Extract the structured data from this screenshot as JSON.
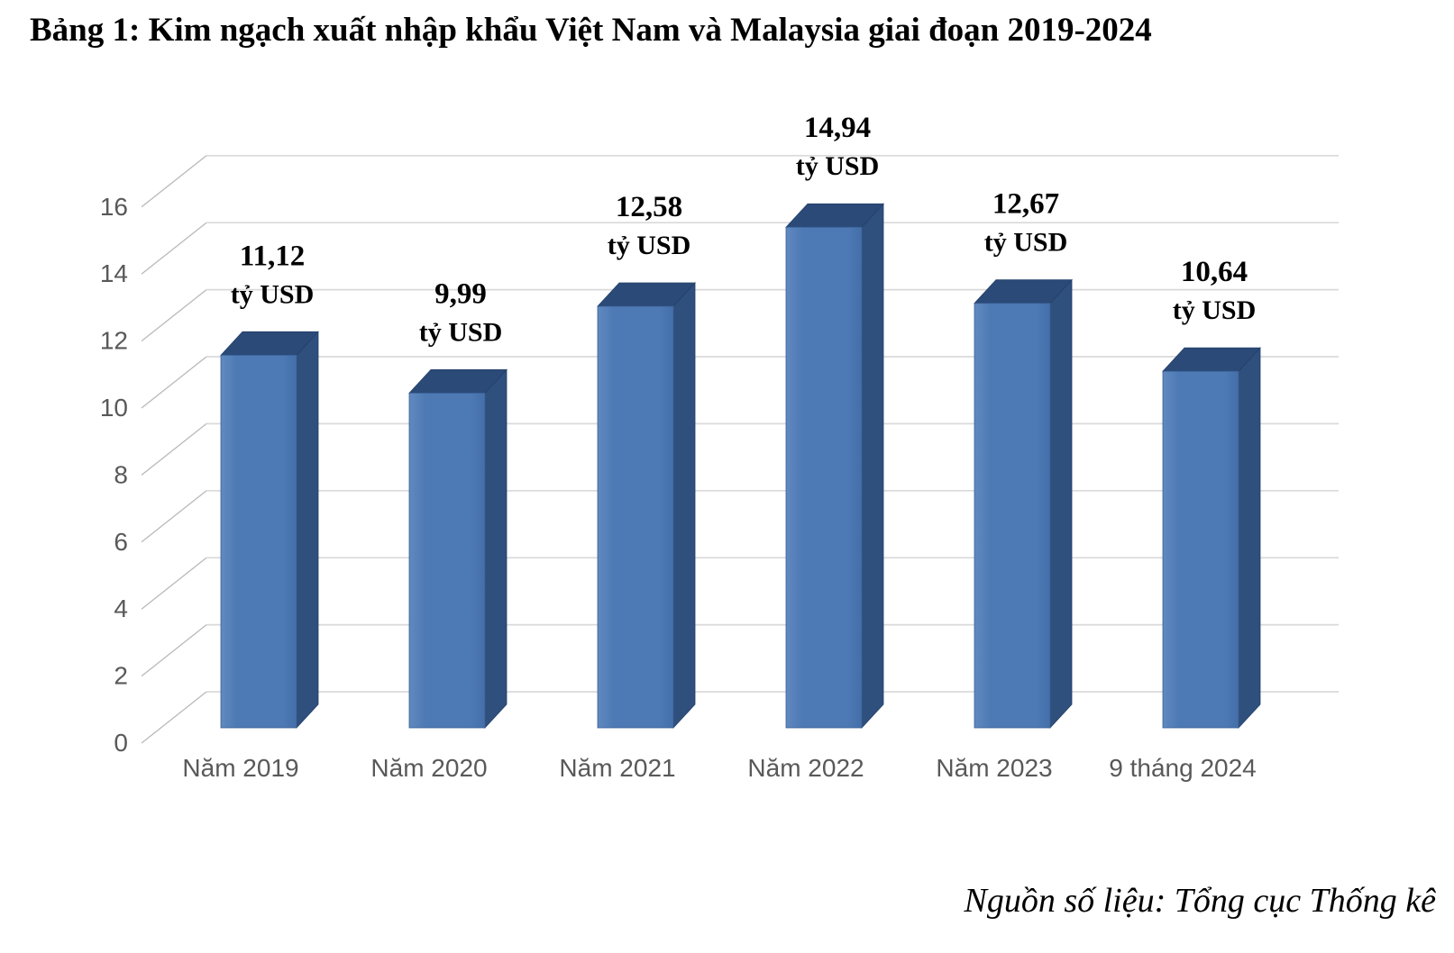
{
  "title": "Bảng 1: Kim ngạch xuất nhập khẩu Việt Nam và Malaysia giai đoạn 2019-2024",
  "source_note": "Nguồn số liệu: Tổng cục Thống kê",
  "chart_data": {
    "type": "bar",
    "style": "3d-column",
    "title": "Bảng 1: Kim ngạch xuất nhập khẩu Việt Nam và Malaysia giai đoạn 2019-2024",
    "categories": [
      "Năm 2019",
      "Năm 2020",
      "Năm 2021",
      "Năm 2022",
      "Năm 2023",
      "9 tháng 2024"
    ],
    "values": [
      11.12,
      9.99,
      12.58,
      14.94,
      12.67,
      10.64
    ],
    "value_labels": [
      "11,12",
      "9,99",
      "12,58",
      "14,94",
      "12,67",
      "10,64"
    ],
    "unit_label": "tỷ USD",
    "xlabel": "",
    "ylabel": "",
    "y_ticks": [
      0,
      2,
      4,
      6,
      8,
      10,
      12,
      14,
      16
    ],
    "ylim": [
      0,
      16
    ],
    "grid": true,
    "legend": "none",
    "source": "Tổng cục Thống kê",
    "colors": {
      "bar_front": "#4d79b4",
      "bar_front_light": "#6089bf",
      "bar_front_dark": "#446fa9",
      "bar_side": "#2f4f7d",
      "bar_top": "#2b4a77",
      "bar_edge": "#24406b",
      "gridline": "#d9d9d9",
      "tick_line": "#b9b9b9",
      "axis_text": "#595959",
      "label_text": "#000000",
      "background": "#ffffff"
    }
  }
}
